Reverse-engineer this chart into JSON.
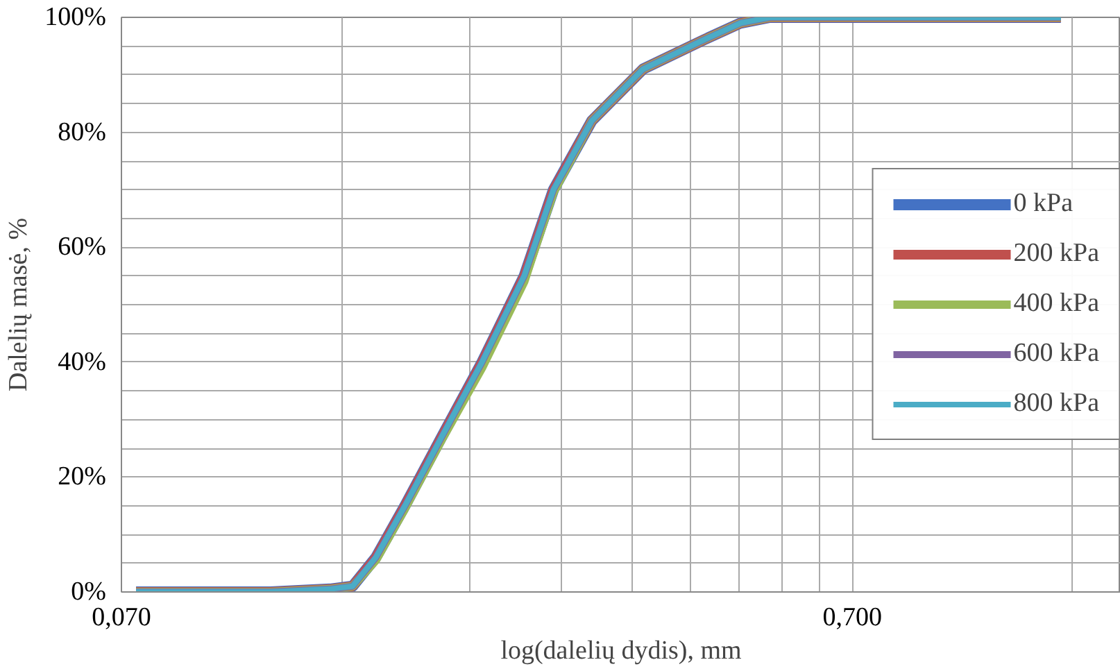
{
  "chart_data": {
    "type": "line",
    "xlabel": "log(dalelių dydis), mm",
    "ylabel": "Dalelių masė, %",
    "log": "x",
    "xlim": [
      0.07,
      1.63
    ],
    "xticks": [
      {
        "value": 0.07,
        "label": "0,070"
      },
      {
        "value": 0.14,
        "label": null
      },
      {
        "value": 0.21,
        "label": null
      },
      {
        "value": 0.28,
        "label": null
      },
      {
        "value": 0.35,
        "label": null
      },
      {
        "value": 0.42,
        "label": null
      },
      {
        "value": 0.49,
        "label": null
      },
      {
        "value": 0.56,
        "label": null
      },
      {
        "value": 0.63,
        "label": null
      },
      {
        "value": 0.7,
        "label": "0,700"
      },
      {
        "value": 1.4,
        "label": null
      }
    ],
    "ylim": [
      0,
      100
    ],
    "yticks": [
      {
        "value": 0,
        "label": "0%"
      },
      {
        "value": 5,
        "label": null
      },
      {
        "value": 10,
        "label": null
      },
      {
        "value": 15,
        "label": null
      },
      {
        "value": 20,
        "label": "20%"
      },
      {
        "value": 25,
        "label": null
      },
      {
        "value": 30,
        "label": null
      },
      {
        "value": 35,
        "label": null
      },
      {
        "value": 40,
        "label": "40%"
      },
      {
        "value": 45,
        "label": null
      },
      {
        "value": 50,
        "label": null
      },
      {
        "value": 55,
        "label": null
      },
      {
        "value": 60,
        "label": "60%"
      },
      {
        "value": 65,
        "label": null
      },
      {
        "value": 70,
        "label": null
      },
      {
        "value": 75,
        "label": null
      },
      {
        "value": 80,
        "label": "80%"
      },
      {
        "value": 85,
        "label": null
      },
      {
        "value": 90,
        "label": null
      },
      {
        "value": 95,
        "label": null
      },
      {
        "value": 100,
        "label": "100%"
      }
    ],
    "grid": true,
    "legend": "right",
    "marker": "none",
    "line_style": "solid",
    "x": [
      0.0733,
      0.112,
      0.135,
      0.145,
      0.156,
      0.171,
      0.192,
      0.218,
      0.249,
      0.273,
      0.308,
      0.362,
      0.437,
      0.492,
      0.54,
      0.7,
      1.35
    ],
    "series": [
      {
        "name": "0 kPa",
        "color": "#4472c4",
        "values": [
          0,
          0,
          0.5,
          1,
          6,
          15,
          27,
          40,
          55,
          70,
          82,
          91,
          96,
          99,
          100,
          100,
          100
        ]
      },
      {
        "name": "200 kPa",
        "color": "#c0504d",
        "values": [
          0,
          0,
          0.5,
          1,
          6,
          15,
          27,
          40,
          55,
          70,
          82,
          91,
          96,
          99,
          100,
          100,
          100
        ]
      },
      {
        "name": "400 kPa",
        "color": "#9bbb59",
        "values": [
          0,
          0,
          0.5,
          1,
          5.5,
          14.5,
          26.5,
          39,
          54,
          69.5,
          82,
          91,
          96,
          99,
          100,
          100,
          100
        ]
      },
      {
        "name": "600 kPa",
        "color": "#8064a2",
        "values": [
          0,
          0,
          0.5,
          1,
          6,
          15,
          27,
          40,
          55,
          70,
          82,
          91,
          96,
          99,
          100,
          100,
          100
        ]
      },
      {
        "name": "800 kPa",
        "color": "#4bacc6",
        "values": [
          0,
          0,
          0.5,
          1,
          6,
          15,
          27,
          40,
          55,
          70,
          82,
          91,
          96,
          99,
          100,
          100,
          100
        ]
      }
    ]
  }
}
